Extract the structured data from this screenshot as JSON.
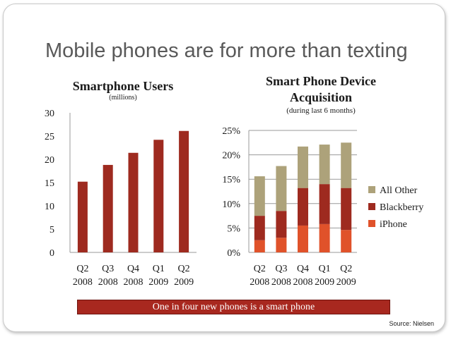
{
  "slide": {
    "title": "Mobile phones are for more than texting",
    "banner": "One in four new phones is a smart phone",
    "source": "Source: Nielsen"
  },
  "colors": {
    "dark_red": "#9e2a1f",
    "orange": "#e0522a",
    "tan": "#ada27a"
  },
  "chart_data": [
    {
      "type": "bar",
      "title": "Smartphone Users",
      "subtitle": "(millions)",
      "categories": [
        [
          "Q2",
          "2008"
        ],
        [
          "Q3",
          "2008"
        ],
        [
          "Q4",
          "2008"
        ],
        [
          "Q1",
          "2009"
        ],
        [
          "Q2",
          "2009"
        ]
      ],
      "values": [
        15.2,
        18.8,
        21.4,
        24.2,
        26.1
      ],
      "ylim": [
        0,
        30
      ],
      "yticks": [
        0,
        5,
        10,
        15,
        20,
        25,
        30
      ],
      "ytick_labels": [
        "0",
        "5",
        "10",
        "15",
        "20",
        "25",
        "30"
      ],
      "grid": false,
      "color": "#9e2a1f"
    },
    {
      "type": "bar",
      "stacked": true,
      "title": [
        "Smart Phone Device",
        "Acquisition"
      ],
      "subtitle": "(during last 6 months)",
      "categories": [
        [
          "Q2",
          "2008"
        ],
        [
          "Q3",
          "2008"
        ],
        [
          "Q4",
          "2008"
        ],
        [
          "Q1",
          "2009"
        ],
        [
          "Q2",
          "2009"
        ]
      ],
      "series": [
        {
          "name": "iPhone",
          "color": "#e0522a",
          "values": [
            2.5,
            3.0,
            5.5,
            5.8,
            4.6
          ]
        },
        {
          "name": "Blackberry",
          "color": "#9e2a1f",
          "values": [
            5.0,
            5.5,
            7.7,
            8.2,
            8.6
          ]
        },
        {
          "name": "All Other",
          "color": "#ada27a",
          "values": [
            8.1,
            9.2,
            8.5,
            8.1,
            9.3
          ]
        }
      ],
      "ylim": [
        0,
        25
      ],
      "yticks": [
        0,
        5,
        10,
        15,
        20,
        25
      ],
      "ytick_labels": [
        "0%",
        "5%",
        "10%",
        "15%",
        "20%",
        "25%"
      ],
      "grid": true,
      "legend": "right"
    }
  ]
}
